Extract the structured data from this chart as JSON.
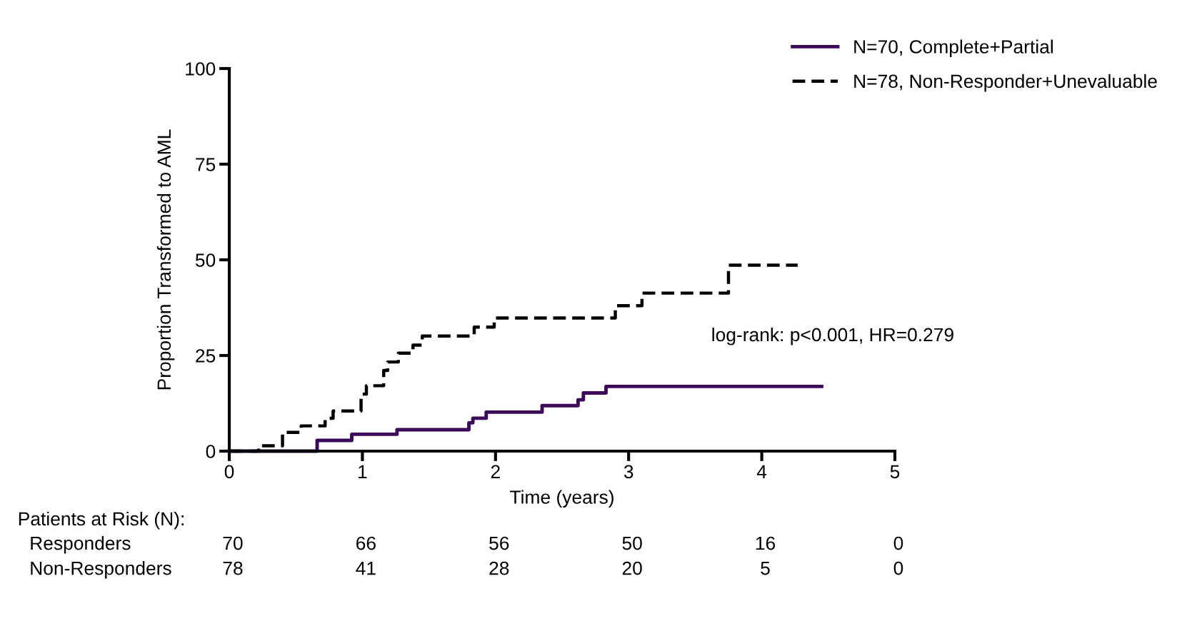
{
  "chart_data": {
    "type": "step",
    "xlabel": "Time (years)",
    "ylabel": "Proportion Transformed to AML",
    "xlim": [
      0,
      5
    ],
    "xticks": [
      0,
      1,
      2,
      3,
      4,
      5
    ],
    "ylim": [
      0,
      100
    ],
    "yticks": [
      0,
      25,
      50,
      75,
      100
    ],
    "grid": false,
    "legend": "top right",
    "marker": "none",
    "series": [
      {
        "name": "N=70, Complete+Partial",
        "color": "#3d0a5a",
        "line_style": "solid",
        "x": [
          0,
          0.66,
          0.92,
          1.26,
          1.8,
          1.83,
          1.93,
          2.35,
          2.62,
          2.66,
          2.83,
          4.45
        ],
        "values": [
          0,
          2.8,
          4.4,
          5.6,
          7.4,
          8.6,
          10.2,
          11.9,
          13.4,
          15.2,
          16.9,
          16.9
        ]
      },
      {
        "name": "N=78, Non-Responder+Unevaluable",
        "color": "#000000",
        "line_style": "dashed",
        "x": [
          0,
          0.22,
          0.4,
          0.54,
          0.72,
          0.78,
          0.99,
          1.03,
          1.16,
          1.19,
          1.27,
          1.38,
          1.45,
          1.84,
          1.99,
          2.9,
          3.1,
          3.75,
          4.27
        ],
        "values": [
          0,
          1.4,
          4.9,
          6.6,
          8.6,
          10.5,
          14.9,
          17.1,
          21.1,
          23.3,
          25.6,
          27.7,
          30.1,
          32.4,
          34.8,
          38.0,
          41.3,
          48.6,
          48.6
        ]
      }
    ],
    "annotations": [
      "log-rank: p<0.001, HR=0.279",
      "Patients at Risk (N):",
      "Responders",
      "70",
      "66",
      "56",
      "50",
      "16",
      "0",
      "Non-Responders",
      "78",
      "41",
      "28",
      "20",
      "5",
      "0"
    ]
  }
}
